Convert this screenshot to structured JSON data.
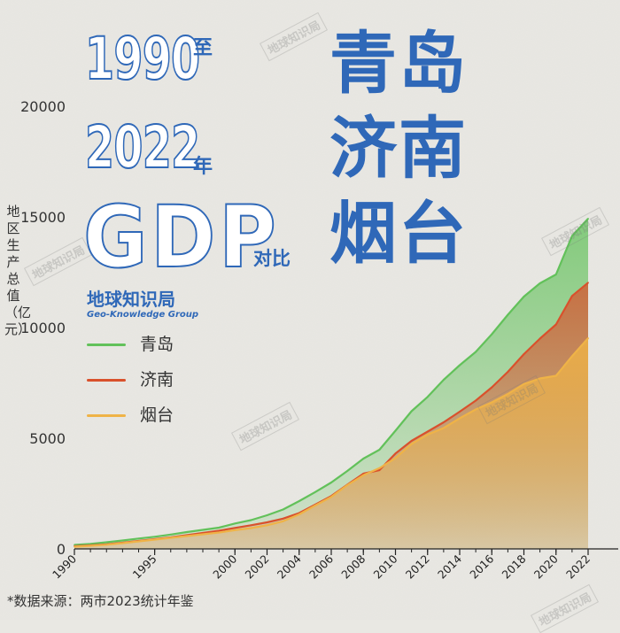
{
  "title": {
    "year_start": "1990",
    "to": "至",
    "year_end": "2022",
    "year_word": "年",
    "metric": "GDP",
    "compare": "对比",
    "city_1": "青岛",
    "city_2": "济南",
    "city_3": "烟台"
  },
  "brand": {
    "name": "地球知识局",
    "english": "Geo-Knowledge Group"
  },
  "watermark": "地球知识局",
  "source_note": "*数据来源：两市2023统计年鉴",
  "colors": {
    "qingdao": "#62c15a",
    "jinan": "#d9512c",
    "yantai": "#efb347",
    "title_blue": "#2f68b8"
  },
  "chart_data": {
    "type": "area",
    "ylabel": "地区生产总值（亿元）",
    "xlabel": "",
    "ylim": [
      0,
      20000
    ],
    "xlim": [
      1990,
      2022
    ],
    "grid": false,
    "legend_position": "left-middle",
    "y_ticks": [
      0,
      5000,
      10000,
      15000,
      20000
    ],
    "x_ticks": [
      1990,
      1995,
      2000,
      2002,
      2004,
      2006,
      2008,
      2010,
      2012,
      2014,
      2016,
      2018,
      2020,
      2022
    ],
    "x": [
      1990,
      1991,
      1992,
      1993,
      1994,
      1995,
      1996,
      1997,
      1998,
      1999,
      2000,
      2001,
      2002,
      2003,
      2004,
      2005,
      2006,
      2007,
      2008,
      2009,
      2010,
      2011,
      2012,
      2013,
      2014,
      2015,
      2016,
      2017,
      2018,
      2019,
      2020,
      2021,
      2022
    ],
    "series": [
      {
        "name": "青岛",
        "color": "#62c15a",
        "values": [
          180,
          230,
          300,
          380,
          470,
          550,
          650,
          760,
          860,
          960,
          1150,
          1300,
          1520,
          1780,
          2160,
          2570,
          3000,
          3520,
          4080,
          4480,
          5340,
          6220,
          6870,
          7640,
          8300,
          8900,
          9700,
          10580,
          11400,
          12000,
          12400,
          14140,
          14920
        ]
      },
      {
        "name": "济南",
        "color": "#d9512c",
        "values": [
          120,
          160,
          210,
          280,
          360,
          440,
          520,
          620,
          720,
          820,
          950,
          1070,
          1200,
          1370,
          1620,
          2000,
          2390,
          2900,
          3400,
          3560,
          4310,
          4880,
          5300,
          5720,
          6200,
          6700,
          7300,
          8000,
          8800,
          9500,
          10140,
          11430,
          12030
        ]
      },
      {
        "name": "烟台",
        "color": "#efb347",
        "values": [
          100,
          140,
          190,
          260,
          340,
          420,
          500,
          580,
          660,
          740,
          850,
          940,
          1070,
          1250,
          1560,
          1960,
          2350,
          2880,
          3330,
          3650,
          4100,
          4740,
          5170,
          5460,
          5900,
          6300,
          6620,
          7000,
          7450,
          7700,
          7820,
          8710,
          9520
        ]
      }
    ]
  },
  "ytick_labels": [
    "0",
    "5000",
    "10000",
    "15000",
    "20000"
  ],
  "xtick_labels": [
    "1990",
    "1995",
    "2000",
    "2002",
    "2004",
    "2006",
    "2008",
    "2010",
    "2012",
    "2014",
    "2016",
    "2018",
    "2020",
    "2022"
  ]
}
